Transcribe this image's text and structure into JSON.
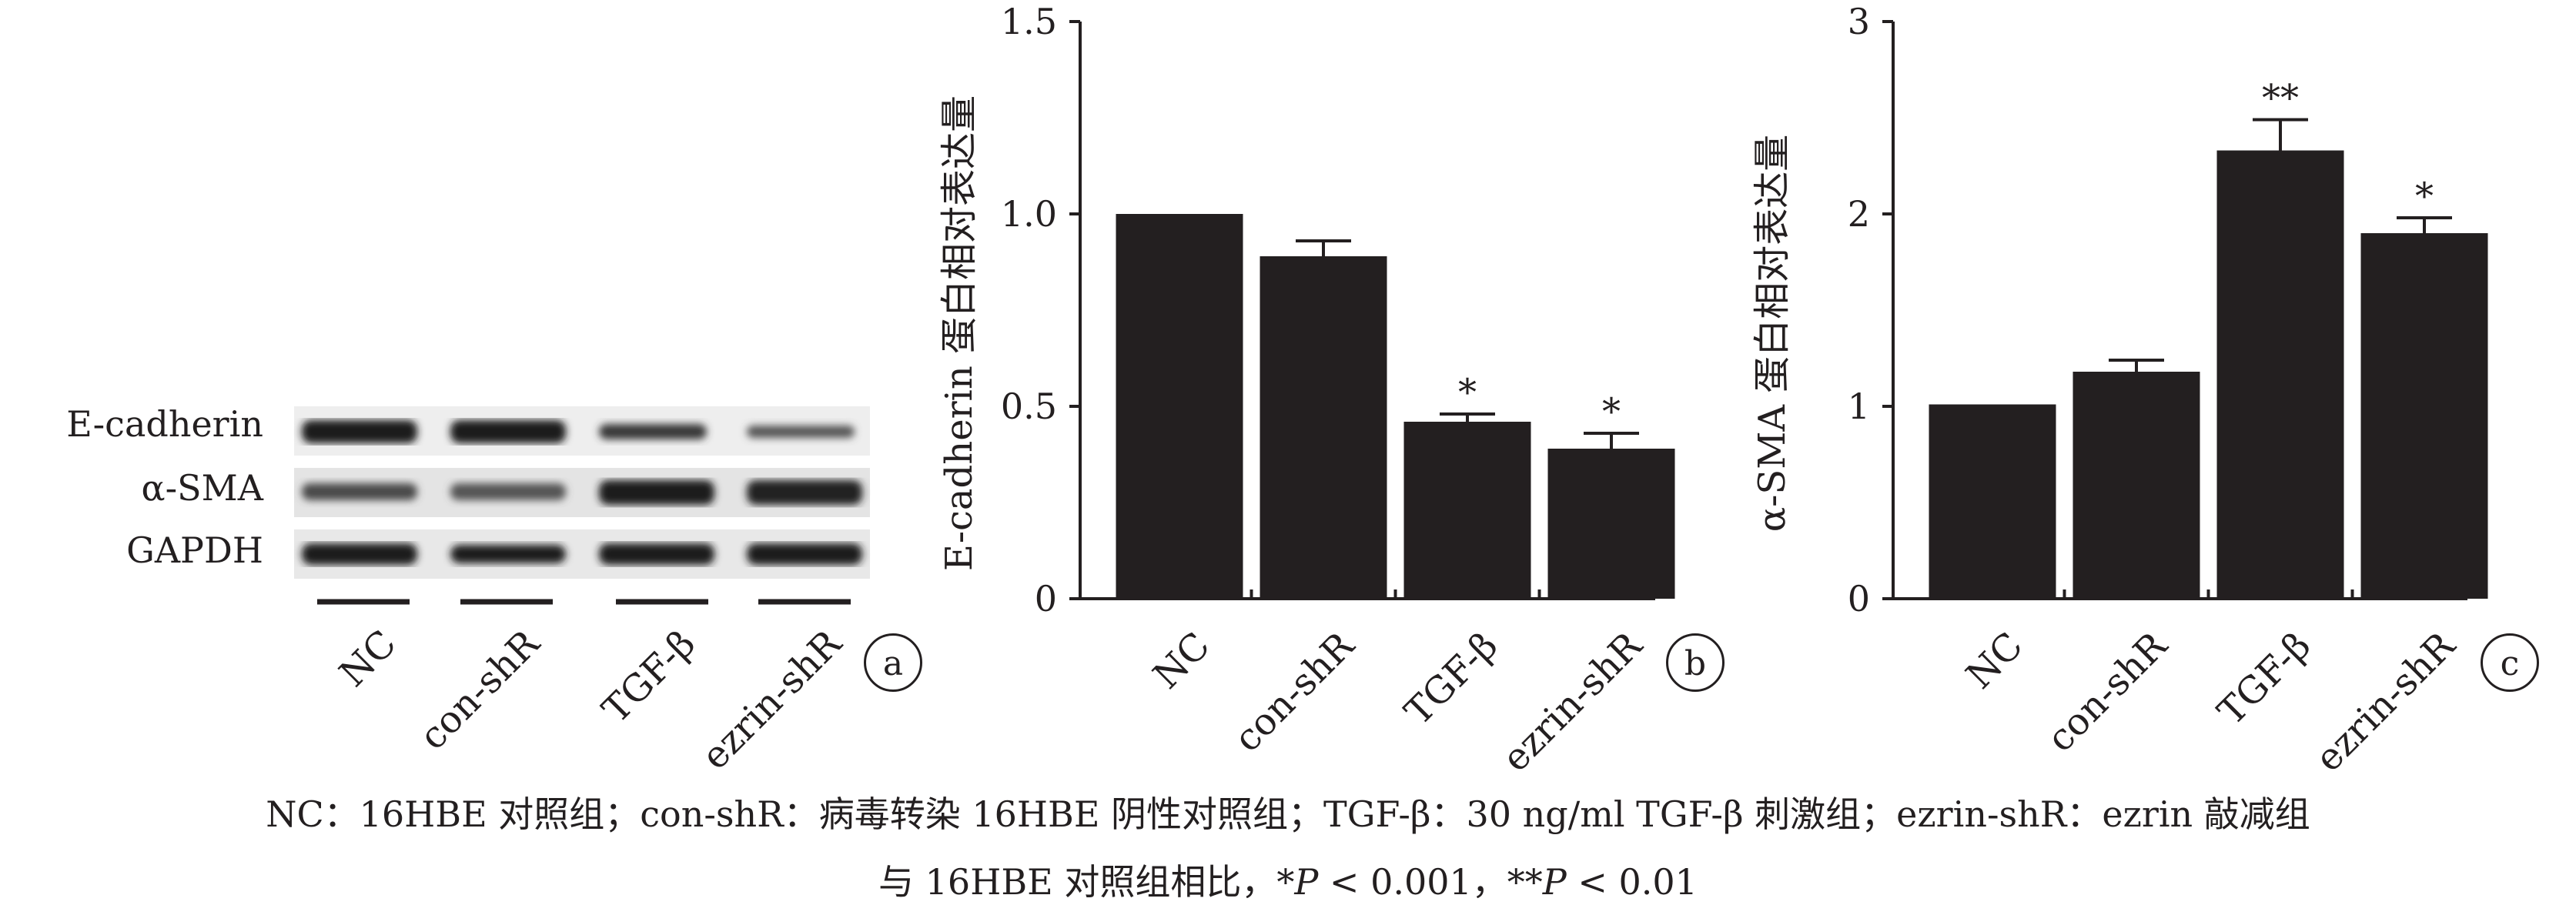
{
  "panel_a": {
    "rows": [
      "E-cadherin",
      "α-SMA",
      "GAPDH"
    ],
    "lanes": [
      "NC",
      "con-shR",
      "TGF-β",
      "ezrin-shR"
    ],
    "tag": "a"
  },
  "chart_data": [
    {
      "type": "bar",
      "panel": "b",
      "categories": [
        "NC",
        "con-shR",
        "TGF-β",
        "ezrin-shR"
      ],
      "values": [
        1.0,
        0.89,
        0.46,
        0.39
      ],
      "errors": [
        0,
        0.04,
        0.02,
        0.04
      ],
      "significance": [
        "",
        "",
        "*",
        "*"
      ],
      "ylabel": "E-cadherin 蛋白相对表达量",
      "ylim": [
        0,
        1.5
      ],
      "yticks": [
        "0",
        "0.5",
        "1.0",
        "1.5"
      ],
      "bar_color": "#231f20"
    },
    {
      "type": "bar",
      "panel": "c",
      "categories": [
        "NC",
        "con-shR",
        "TGF-β",
        "ezrin-shR"
      ],
      "values": [
        1.01,
        1.18,
        2.33,
        1.9
      ],
      "errors": [
        0,
        0.06,
        0.16,
        0.08
      ],
      "significance": [
        "",
        "",
        "**",
        "*"
      ],
      "ylabel": "α-SMA 蛋白相对表达量",
      "ylim": [
        0,
        3
      ],
      "yticks": [
        "0",
        "1",
        "2",
        "3"
      ],
      "bar_color": "#231f20"
    }
  ],
  "caption": {
    "line1": "NC：16HBE 对照组；con-shR：病毒转染 16HBE 阴性对照组；TGF-β：30 ng/ml TGF-β 刺激组；ezrin-shR：ezrin 敲减组",
    "line2_pre": "与 16HBE 对照组相比，*",
    "p1": "P",
    "line2_mid": " < 0.001，**",
    "p2": "P",
    "line2_post": " < 0.01"
  }
}
